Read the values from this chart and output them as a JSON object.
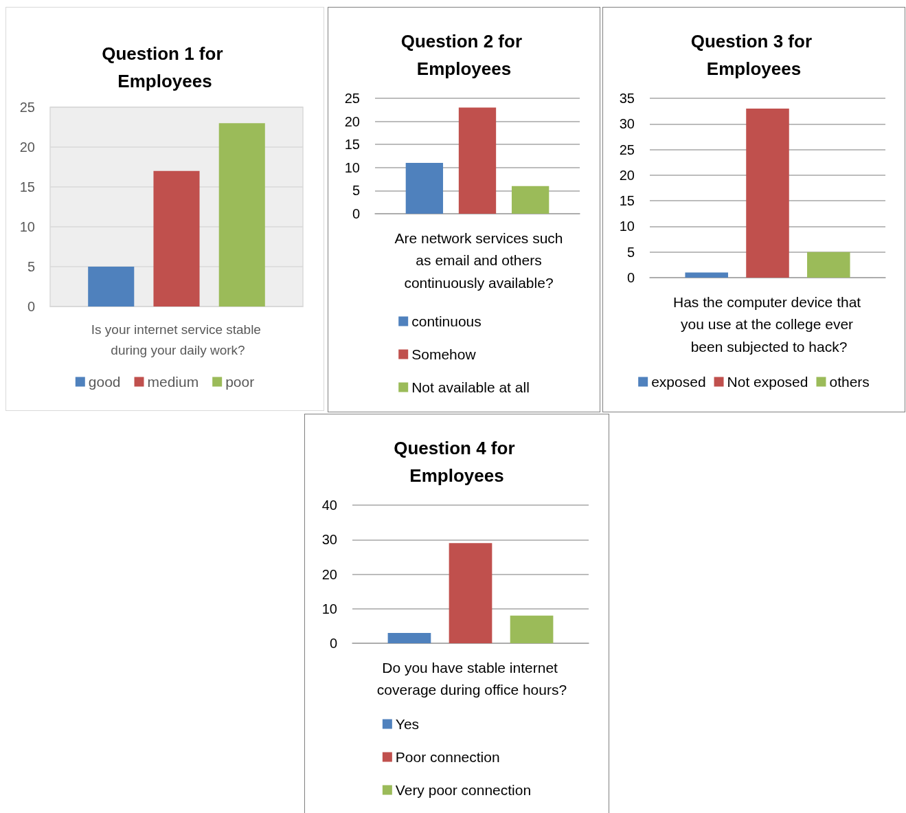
{
  "chart_data": [
    {
      "type": "bar",
      "title": "Question 1 for Employees",
      "xlabel": "Is your internet service stable during your daily work?",
      "categories": [
        null
      ],
      "series": [
        {
          "name": "good",
          "color": "#4f81bd",
          "values": [
            5
          ]
        },
        {
          "name": "medium",
          "color": "#c0504d",
          "values": [
            17
          ]
        },
        {
          "name": "poor",
          "color": "#9bbb59",
          "values": [
            23
          ]
        }
      ],
      "ylim": [
        0,
        25
      ],
      "yticks": [
        0,
        5,
        10,
        15,
        20,
        25
      ],
      "grid": "y",
      "legend": "bottom"
    },
    {
      "type": "bar",
      "title": "Question 2 for Employees",
      "xlabel": "Are network services such as email and others continuously available?",
      "categories": [
        null
      ],
      "series": [
        {
          "name": "continuous",
          "color": "#4f81bd",
          "values": [
            11
          ]
        },
        {
          "name": "Somehow",
          "color": "#c0504d",
          "values": [
            23
          ]
        },
        {
          "name": "Not available at all",
          "color": "#9bbb59",
          "values": [
            6
          ]
        }
      ],
      "ylim": [
        0,
        25
      ],
      "yticks": [
        0,
        5,
        10,
        15,
        20,
        25
      ],
      "grid": "y",
      "legend": "bottom"
    },
    {
      "type": "bar",
      "title": "Question 3 for Employees",
      "xlabel": "Has the computer device that you use at the college ever been subjected to hack?",
      "categories": [
        null
      ],
      "series": [
        {
          "name": "exposed",
          "color": "#4f81bd",
          "values": [
            1
          ]
        },
        {
          "name": "Not exposed",
          "color": "#c0504d",
          "values": [
            33
          ]
        },
        {
          "name": "others",
          "color": "#9bbb59",
          "values": [
            5
          ]
        }
      ],
      "ylim": [
        0,
        35
      ],
      "yticks": [
        0,
        5,
        10,
        15,
        20,
        25,
        30,
        35
      ],
      "grid": "y",
      "legend": "bottom"
    },
    {
      "type": "bar",
      "title": "Question 4 for Employees",
      "xlabel": "Do you have stable internet coverage during office hours?",
      "categories": [
        null
      ],
      "series": [
        {
          "name": "Yes",
          "color": "#4f81bd",
          "values": [
            3
          ]
        },
        {
          "name": "Poor connection",
          "color": "#c0504d",
          "values": [
            29
          ]
        },
        {
          "name": "Very poor connection",
          "color": "#9bbb59",
          "values": [
            8
          ]
        }
      ],
      "ylim": [
        0,
        40
      ],
      "yticks": [
        0,
        10,
        20,
        30,
        40
      ],
      "grid": "y",
      "legend": "bottom"
    }
  ]
}
